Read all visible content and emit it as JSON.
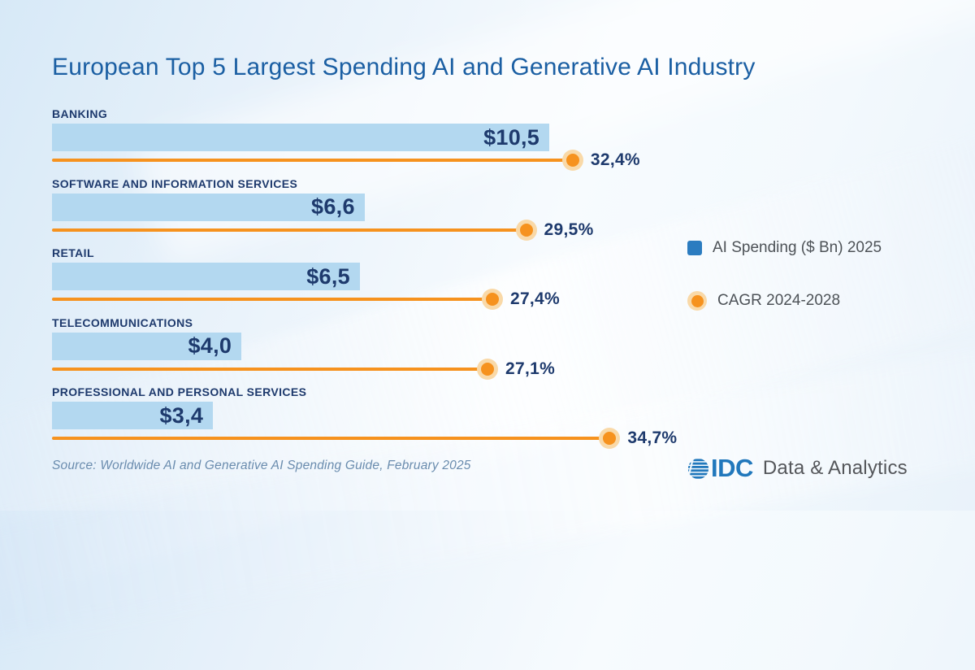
{
  "title": "European Top 5 Largest Spending AI and Generative AI Industry",
  "chart_data": {
    "type": "bar",
    "orientation": "horizontal",
    "categories": [
      "BANKING",
      "SOFTWARE AND INFORMATION SERVICES",
      "RETAIL",
      "TELECOMMUNICATIONS",
      "PROFESSIONAL AND PERSONAL SERVICES"
    ],
    "series": [
      {
        "name": "AI Spending ($ Bn) 2025",
        "unit": "$ Bn",
        "values": [
          10.5,
          6.6,
          6.5,
          4.0,
          3.4
        ],
        "display": [
          "$10,5",
          "$6,6",
          "$6,5",
          "$4,0",
          "$3,4"
        ]
      },
      {
        "name": "CAGR 2024-2028",
        "unit": "%",
        "values": [
          32.4,
          29.5,
          27.4,
          27.1,
          34.7
        ],
        "display": [
          "32,4%",
          "29,5%",
          "27,4%",
          "27,1%",
          "34,7%"
        ]
      }
    ],
    "legend_position": "right",
    "grid": false
  },
  "legend": {
    "items": [
      {
        "label": "AI Spending ($ Bn) 2025",
        "swatch": "square",
        "color": "#2b7cc0"
      },
      {
        "label": "CAGR 2024-2028",
        "swatch": "dot",
        "color": "#f6921e"
      }
    ]
  },
  "source": "Source: Worldwide AI and Generative AI Spending Guide, February 2025",
  "logo": {
    "brand": "IDC",
    "suffix": "Data & Analytics"
  },
  "colors": {
    "title_blue": "#1b5fa3",
    "navy": "#1e3a6d",
    "bar_blue": "#b3d8f0",
    "orange": "#f6921e",
    "orange_halo": "#f9d9a8",
    "legend_blue": "#2b7cc0",
    "legend_text": "#4d5257",
    "source_text": "#6a8cae",
    "idc_blue": "#2178bc",
    "idc_gray": "#54565a"
  }
}
